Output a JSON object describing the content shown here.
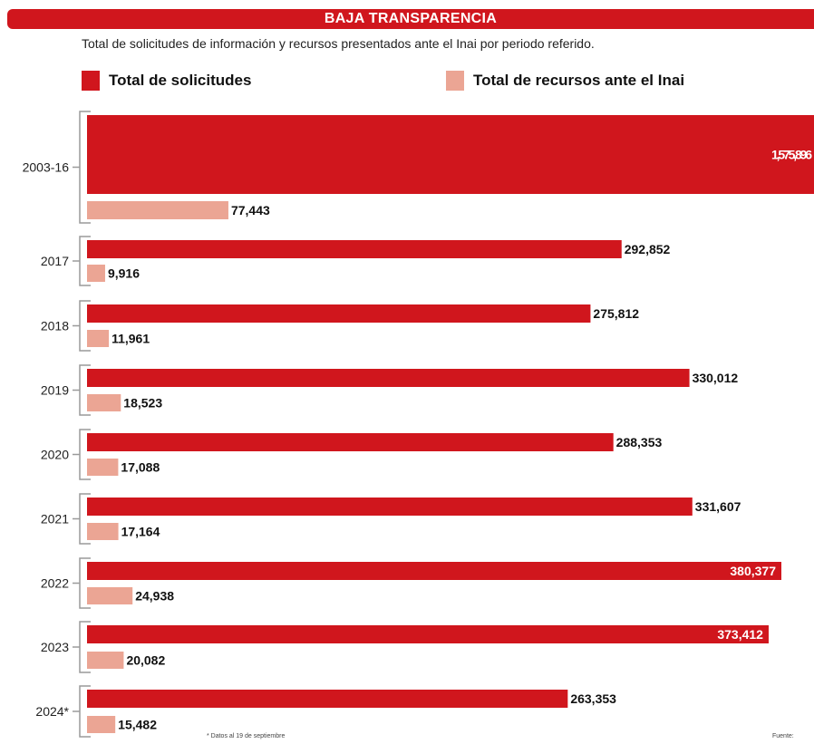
{
  "header": {
    "banner": "BAJA TRANSPARENCIA",
    "subtitle": "Total de solicitudes de información y recursos presentados ante el Inai por periodo referido."
  },
  "legend": {
    "solicitudes": "Total de solicitudes",
    "recursos": "Total de recursos ante el Inai"
  },
  "colors": {
    "solicitudes": "#d0161d",
    "recursos": "#eba594",
    "axis": "#9a9a9a"
  },
  "footnote": "* Datos al 19 de septiembre",
  "source": "Fuente: ",
  "chart_data": {
    "type": "bar",
    "orientation": "horizontal",
    "title": "BAJA TRANSPARENCIA",
    "subtitle": "Total de solicitudes de información y recursos presentados ante el Inai por periodo referido.",
    "categories": [
      "2003-16",
      "2017",
      "2018",
      "2019",
      "2020",
      "2021",
      "2022",
      "2023",
      "2024*"
    ],
    "series": [
      {
        "name": "Total de solicitudes",
        "values": [
          1575896,
          292852,
          275812,
          330012,
          288353,
          331607,
          380377,
          373412,
          263353
        ],
        "labels": [
          "1,575,896",
          "292,852",
          "275,812",
          "330,012",
          "288,353",
          "331,607",
          "380,377",
          "373,412",
          "263,353"
        ]
      },
      {
        "name": "Total de recursos ante el Inai",
        "values": [
          77443,
          9916,
          11961,
          18523,
          17088,
          17164,
          24938,
          20082,
          15482
        ],
        "labels": [
          "77,443",
          "9,916",
          "11,961",
          "18,523",
          "17,088",
          "17,164",
          "24,938",
          "20,082",
          "15,482"
        ]
      }
    ],
    "legend_position": "top",
    "grid": false
  }
}
